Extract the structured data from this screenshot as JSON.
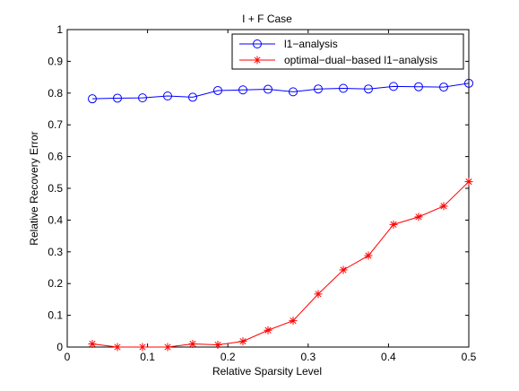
{
  "chart_data": {
    "type": "line",
    "title": "I + F Case",
    "xlabel": "Relative Sparsity Level",
    "ylabel": "Relative Recovery Error",
    "xlim": [
      0,
      0.5
    ],
    "ylim": [
      0,
      1
    ],
    "xticks": [
      0,
      0.1,
      0.2,
      0.3,
      0.4,
      0.5
    ],
    "xtick_labels": [
      "0",
      "0.1",
      "0.2",
      "0.3",
      "0.4",
      "0.5"
    ],
    "yticks": [
      0,
      0.1,
      0.2,
      0.3,
      0.4,
      0.5,
      0.6,
      0.7,
      0.8,
      0.9,
      1
    ],
    "ytick_labels": [
      "0",
      "0.1",
      "0.2",
      "0.3",
      "0.4",
      "0.5",
      "0.6",
      "0.7",
      "0.8",
      "0.9",
      "1"
    ],
    "grid": false,
    "legend_position": "top-right",
    "x": [
      0.03125,
      0.0625,
      0.09375,
      0.125,
      0.15625,
      0.1875,
      0.21875,
      0.25,
      0.28125,
      0.3125,
      0.34375,
      0.375,
      0.40625,
      0.4375,
      0.46875,
      0.5
    ],
    "series": [
      {
        "name": "l1−analysis",
        "color": "#0000ff",
        "marker": "circle",
        "values": [
          0.782,
          0.784,
          0.785,
          0.791,
          0.787,
          0.808,
          0.81,
          0.812,
          0.804,
          0.813,
          0.815,
          0.813,
          0.821,
          0.82,
          0.819,
          0.831
        ]
      },
      {
        "name": "optimal−dual−based l1−analysis",
        "color": "#ff0000",
        "marker": "asterisk",
        "values": [
          0.01,
          0.0,
          0.0,
          0.0,
          0.01,
          0.007,
          0.018,
          0.053,
          0.083,
          0.167,
          0.243,
          0.288,
          0.386,
          0.41,
          0.444,
          0.521
        ]
      }
    ]
  }
}
